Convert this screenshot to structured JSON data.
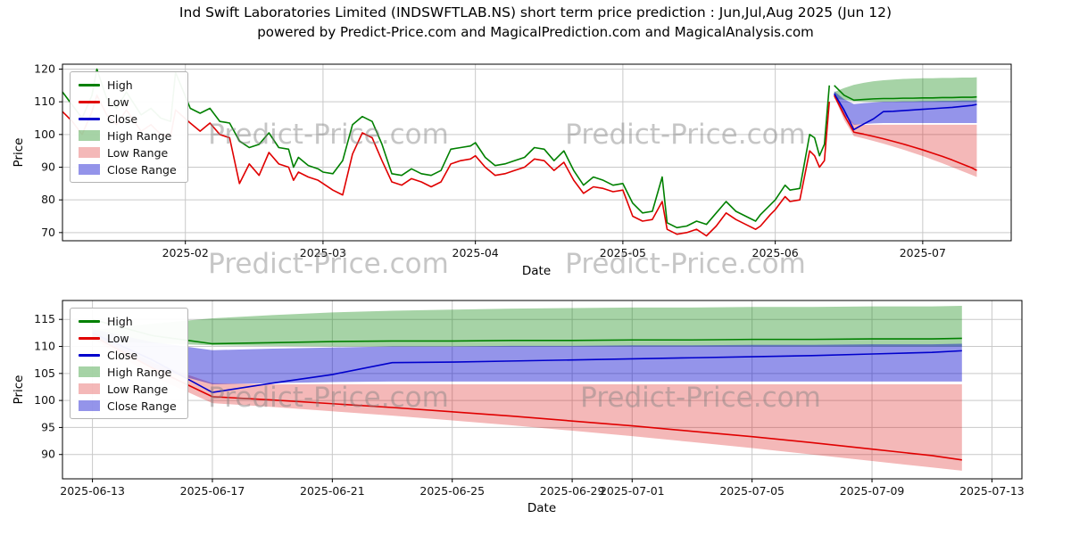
{
  "watermark": {
    "text": "Predict-Price.com"
  },
  "chart_data": {
    "type": "line",
    "title": "Ind Swift Laboratories Limited (INDSWFTLAB.NS) short term price prediction : Jun,Jul,Aug 2025 (Jun 12)",
    "subtitle": "powered by Predict-Price.com and MagicalPrediction.com and MagicalAnalysis.com",
    "legend": [
      {
        "label": "High",
        "type": "line",
        "color": "#008000"
      },
      {
        "label": "Low",
        "type": "line",
        "color": "#e00000"
      },
      {
        "label": "Close",
        "type": "line",
        "color": "#0000cc"
      },
      {
        "label": "High Range",
        "type": "patch",
        "color": "rgba(0,128,0,0.35)"
      },
      {
        "label": "Low Range",
        "type": "patch",
        "color": "rgba(220,20,20,0.30)"
      },
      {
        "label": "Close Range",
        "type": "patch",
        "color": "rgba(0,0,205,0.42)"
      }
    ],
    "charts": [
      {
        "id": "history",
        "xlabel": "Date",
        "ylabel": "Price",
        "x_range": [
          "2025-01-07",
          "2025-07-19"
        ],
        "y_range": [
          67.5,
          121.5
        ],
        "y_ticks": [
          70,
          80,
          90,
          100,
          110,
          120
        ],
        "x_ticks": [
          {
            "value": "2025-02-01",
            "label": "2025-02"
          },
          {
            "value": "2025-03-01",
            "label": "2025-03"
          },
          {
            "value": "2025-04-01",
            "label": "2025-04"
          },
          {
            "value": "2025-05-01",
            "label": "2025-05"
          },
          {
            "value": "2025-06-01",
            "label": "2025-06"
          },
          {
            "value": "2025-07-01",
            "label": "2025-07"
          }
        ],
        "show_historical": true,
        "show_prediction": true
      },
      {
        "id": "forecast",
        "xlabel": "Date",
        "ylabel": "Price",
        "x_range": [
          "2025-06-12",
          "2025-07-14"
        ],
        "y_range": [
          85.5,
          118.5
        ],
        "y_ticks": [
          90,
          95,
          100,
          105,
          110,
          115
        ],
        "x_ticks": [
          {
            "value": "2025-06-13",
            "label": "2025-06-13"
          },
          {
            "value": "2025-06-17",
            "label": "2025-06-17"
          },
          {
            "value": "2025-06-21",
            "label": "2025-06-21"
          },
          {
            "value": "2025-06-25",
            "label": "2025-06-25"
          },
          {
            "value": "2025-06-29",
            "label": "2025-06-29"
          },
          {
            "value": "2025-07-01",
            "label": "2025-07-01"
          },
          {
            "value": "2025-07-05",
            "label": "2025-07-05"
          },
          {
            "value": "2025-07-09",
            "label": "2025-07-09"
          },
          {
            "value": "2025-07-13",
            "label": "2025-07-13"
          }
        ],
        "show_historical": false,
        "show_prediction": true
      }
    ],
    "historical": {
      "dates": [
        "2025-01-07",
        "2025-01-09",
        "2025-01-11",
        "2025-01-13",
        "2025-01-14",
        "2025-01-16",
        "2025-01-18",
        "2025-01-20",
        "2025-01-23",
        "2025-01-25",
        "2025-01-27",
        "2025-01-29",
        "2025-01-30",
        "2025-02-02",
        "2025-02-04",
        "2025-02-06",
        "2025-02-08",
        "2025-02-10",
        "2025-02-12",
        "2025-02-14",
        "2025-02-16",
        "2025-02-18",
        "2025-02-20",
        "2025-02-22",
        "2025-02-23",
        "2025-02-24",
        "2025-02-26",
        "2025-02-28",
        "2025-03-01",
        "2025-03-03",
        "2025-03-05",
        "2025-03-07",
        "2025-03-09",
        "2025-03-11",
        "2025-03-13",
        "2025-03-15",
        "2025-03-17",
        "2025-03-19",
        "2025-03-21",
        "2025-03-23",
        "2025-03-25",
        "2025-03-27",
        "2025-03-29",
        "2025-03-31",
        "2025-04-01",
        "2025-04-03",
        "2025-04-05",
        "2025-04-07",
        "2025-04-09",
        "2025-04-11",
        "2025-04-13",
        "2025-04-15",
        "2025-04-17",
        "2025-04-19",
        "2025-04-21",
        "2025-04-23",
        "2025-04-25",
        "2025-04-27",
        "2025-04-29",
        "2025-05-01",
        "2025-05-03",
        "2025-05-05",
        "2025-05-07",
        "2025-05-09",
        "2025-05-10",
        "2025-05-12",
        "2025-05-14",
        "2025-05-16",
        "2025-05-18",
        "2025-05-20",
        "2025-05-22",
        "2025-05-24",
        "2025-05-26",
        "2025-05-28",
        "2025-05-29",
        "2025-05-31",
        "2025-06-01",
        "2025-06-03",
        "2025-06-04",
        "2025-06-06",
        "2025-06-08",
        "2025-06-09",
        "2025-06-10",
        "2025-06-11",
        "2025-06-12"
      ],
      "high": [
        113,
        109,
        105,
        112,
        120,
        111,
        108,
        113,
        106,
        108,
        105,
        104,
        119,
        108,
        106.5,
        108,
        104,
        103.5,
        98,
        96,
        97,
        100.5,
        96,
        95.5,
        90,
        93,
        90.5,
        89.5,
        88.5,
        88,
        92,
        103,
        105.5,
        104,
        97,
        88,
        87.5,
        89.5,
        88,
        87.5,
        89,
        95.5,
        96,
        96.5,
        97.5,
        93,
        90.5,
        91,
        92,
        93,
        96,
        95.5,
        92,
        95,
        89,
        84.5,
        87,
        86,
        84.5,
        85,
        79,
        76,
        76.5,
        87,
        73,
        71.5,
        72,
        73.5,
        72.5,
        76,
        79.5,
        76.5,
        75,
        73.5,
        75.5,
        78.5,
        80,
        84.5,
        83,
        83.5,
        100,
        99,
        93.5,
        97,
        115
      ],
      "low": [
        107,
        104,
        100,
        107,
        112,
        106,
        103,
        107.5,
        101,
        103,
        100,
        99.5,
        107.5,
        103.5,
        101,
        103.5,
        100,
        99,
        85,
        91,
        87.5,
        94.5,
        91,
        90,
        86,
        88.5,
        87,
        86,
        85,
        83,
        81.5,
        94,
        100.5,
        99,
        92,
        85.5,
        84.5,
        86.5,
        85.5,
        84,
        85.5,
        91,
        92,
        92.5,
        93.5,
        90,
        87.5,
        88,
        89,
        90,
        92.5,
        92,
        89,
        91.5,
        86,
        82,
        84,
        83.5,
        82.5,
        83,
        75,
        73.5,
        74,
        79.5,
        71,
        69.5,
        70,
        71,
        69,
        72,
        76,
        74,
        72.5,
        71,
        72,
        75.5,
        77,
        81,
        79.5,
        80,
        95,
        93.5,
        90,
        92,
        110
      ]
    },
    "prediction": {
      "dates": [
        "2025-06-13",
        "2025-06-15",
        "2025-06-17",
        "2025-06-19",
        "2025-06-21",
        "2025-06-23",
        "2025-06-25",
        "2025-06-27",
        "2025-06-29",
        "2025-07-01",
        "2025-07-03",
        "2025-07-05",
        "2025-07-07",
        "2025-07-09",
        "2025-07-11",
        "2025-07-12"
      ],
      "high": [
        115,
        112,
        110.5,
        110.7,
        110.9,
        111,
        111,
        111.1,
        111.1,
        111.2,
        111.2,
        111.3,
        111.3,
        111.4,
        111.4,
        111.5
      ],
      "low": [
        112,
        106,
        100.7,
        100.1,
        99.4,
        98.7,
        97.9,
        97.1,
        96.2,
        95.3,
        94.3,
        93.3,
        92.2,
        91,
        89.8,
        89
      ],
      "close": [
        112.5,
        107.5,
        101.5,
        103.2,
        104.8,
        107,
        107.1,
        107.3,
        107.5,
        107.7,
        107.9,
        108.1,
        108.3,
        108.6,
        108.9,
        109.2
      ],
      "high_range": {
        "upper": [
          113,
          114.2,
          115.2,
          115.8,
          116.3,
          116.6,
          116.8,
          117,
          117.1,
          117.2,
          117.2,
          117.3,
          117.3,
          117.4,
          117.4,
          117.5
        ],
        "lower": [
          111,
          110.6,
          110.2,
          110.1,
          110,
          110,
          110,
          110,
          110,
          110,
          110,
          110,
          110,
          110,
          110,
          110
        ]
      },
      "low_range": {
        "upper": [
          112.5,
          107,
          103.2,
          103,
          103,
          103,
          103,
          103,
          103,
          103,
          103,
          103,
          103,
          103,
          103,
          103
        ],
        "lower": [
          111.5,
          104.5,
          99.5,
          98.8,
          98,
          97.2,
          96.3,
          95.4,
          94.4,
          93.4,
          92.3,
          91.2,
          90,
          88.8,
          87.6,
          87
        ]
      },
      "close_range": {
        "upper": [
          113.2,
          110.8,
          109.3,
          109.6,
          109.8,
          110,
          110,
          110.1,
          110.1,
          110.2,
          110.2,
          110.3,
          110.3,
          110.4,
          110.4,
          110.5
        ],
        "lower": [
          111.8,
          106,
          103,
          103.2,
          103.4,
          103.5,
          103.5,
          103.5,
          103.5,
          103.5,
          103.5,
          103.5,
          103.5,
          103.5,
          103.5,
          103.5
        ]
      }
    }
  }
}
